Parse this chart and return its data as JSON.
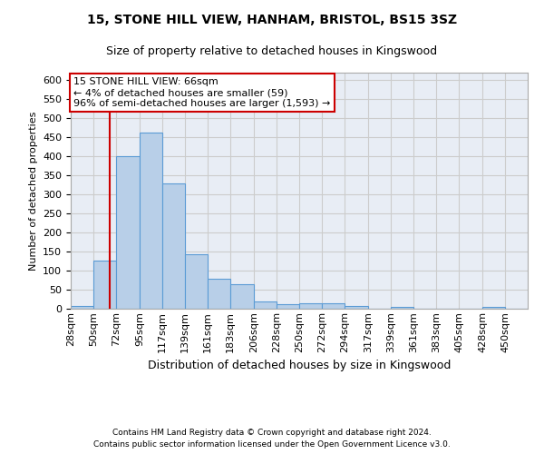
{
  "title1": "15, STONE HILL VIEW, HANHAM, BRISTOL, BS15 3SZ",
  "title2": "Size of property relative to detached houses in Kingswood",
  "xlabel": "Distribution of detached houses by size in Kingswood",
  "ylabel": "Number of detached properties",
  "footer1": "Contains HM Land Registry data © Crown copyright and database right 2024.",
  "footer2": "Contains public sector information licensed under the Open Government Licence v3.0.",
  "annotation_line1": "15 STONE HILL VIEW: 66sqm",
  "annotation_line2": "← 4% of detached houses are smaller (59)",
  "annotation_line3": "96% of semi-detached houses are larger (1,593) →",
  "bar_color": "#b8cfe8",
  "bar_edge_color": "#5b9bd5",
  "property_line_color": "#cc0000",
  "annotation_box_edge_color": "#cc0000",
  "bg_color": "#e8edf5",
  "grid_color": "#cccccc",
  "bin_edges": [
    28,
    50,
    72,
    95,
    117,
    139,
    161,
    183,
    206,
    228,
    250,
    272,
    294,
    317,
    339,
    361,
    383,
    405,
    428,
    450,
    472
  ],
  "bar_values": [
    8,
    127,
    400,
    463,
    328,
    143,
    79,
    65,
    19,
    11,
    15,
    15,
    7,
    0,
    5,
    0,
    0,
    0,
    5,
    0
  ],
  "property_size": 66,
  "ylim": [
    0,
    620
  ],
  "yticks": [
    0,
    50,
    100,
    150,
    200,
    250,
    300,
    350,
    400,
    450,
    500,
    550,
    600
  ],
  "title1_fontsize": 10,
  "title2_fontsize": 9,
  "ylabel_fontsize": 8,
  "xlabel_fontsize": 9,
  "tick_fontsize": 8,
  "xtick_fontsize": 8,
  "footer_fontsize": 6.5,
  "annot_fontsize": 8
}
